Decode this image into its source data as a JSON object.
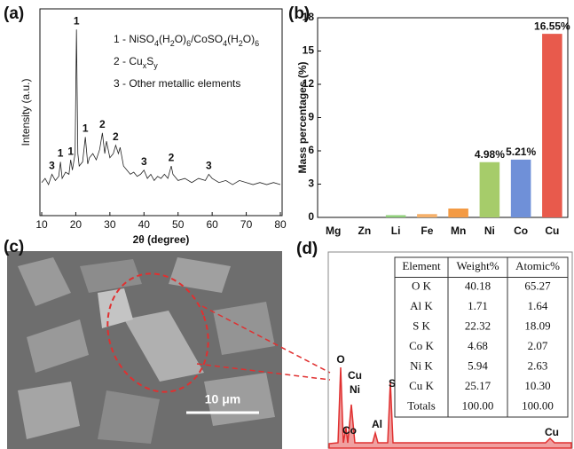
{
  "chart_data": [
    {
      "type": "line",
      "panel_label": "(a)",
      "x_label": "2θ (degree)",
      "y_label": "Intensity (a.u.)",
      "color": "#222222",
      "x": [
        10,
        11,
        12,
        13,
        14,
        15,
        15.5,
        16,
        17,
        18,
        18.5,
        19,
        19.8,
        20.2,
        20.6,
        21,
        22,
        22.8,
        23.5,
        24,
        25,
        26,
        27,
        27.8,
        28.5,
        29,
        30,
        31,
        31.7,
        32.5,
        33,
        34,
        35,
        36,
        37,
        38,
        39,
        40,
        41,
        42,
        43,
        44,
        45,
        46,
        47,
        48,
        48.5,
        49,
        50,
        52,
        54,
        56,
        58,
        59,
        60,
        62,
        64,
        66,
        68,
        70,
        72,
        74,
        76,
        78,
        80
      ],
      "values": [
        16,
        18,
        15,
        20,
        17,
        19,
        26,
        18,
        21,
        20,
        27,
        22,
        30,
        90,
        30,
        24,
        26,
        38,
        25,
        28,
        30,
        27,
        32,
        40,
        30,
        36,
        28,
        30,
        34,
        30,
        33,
        24,
        22,
        20,
        21,
        19,
        20,
        22,
        18,
        20,
        17,
        19,
        18,
        20,
        18,
        24,
        20,
        19,
        17,
        18,
        16,
        18,
        17,
        20,
        18,
        16,
        17,
        15,
        17,
        16,
        15,
        16,
        15,
        16,
        15
      ],
      "xlim": [
        10,
        80
      ],
      "xticks": [
        10,
        20,
        30,
        40,
        50,
        60,
        70,
        80
      ],
      "ylim": [
        0,
        100
      ],
      "annotations": [
        {
          "text": "3",
          "x": 13
        },
        {
          "text": "1",
          "x": 15.5
        },
        {
          "text": "1",
          "x": 18.5
        },
        {
          "text": "1",
          "x": 20.2
        },
        {
          "text": "1",
          "x": 22.8
        },
        {
          "text": "2",
          "x": 27.8
        },
        {
          "text": "2",
          "x": 31.7
        },
        {
          "text": "3",
          "x": 40
        },
        {
          "text": "2",
          "x": 48
        },
        {
          "text": "3",
          "x": 59
        }
      ],
      "legend_lines": [
        [
          "1 - NiSO",
          "4",
          "(H",
          "2",
          "O)",
          "6",
          "/CoSO",
          "4",
          "(H",
          "2",
          "O)",
          "6"
        ],
        [
          "2 - Cu",
          "x",
          "S",
          "y"
        ],
        [
          "3 - Other metallic elements"
        ]
      ]
    },
    {
      "type": "bar",
      "panel_label": "(b)",
      "y_label": "Mass percentages (%)",
      "categories": [
        "Mg",
        "Zn",
        "Li",
        "Fe",
        "Mn",
        "Ni",
        "Co",
        "Cu"
      ],
      "values": [
        0,
        0,
        0.2,
        0.3,
        0.8,
        4.98,
        5.21,
        16.55
      ],
      "value_labels": [
        null,
        null,
        null,
        null,
        null,
        "4.98%",
        "5.21%",
        "16.55%"
      ],
      "colors": [
        "#7bb26a",
        "#7bb26a",
        "#8fcf7a",
        "#f5b06a",
        "#f39a44",
        "#a6cc6a",
        "#6f90d8",
        "#e85a4c"
      ],
      "ylim": [
        0,
        18
      ],
      "yticks": [
        0,
        3,
        6,
        9,
        12,
        15,
        18
      ]
    }
  ],
  "sem_image": {
    "panel_label": "(c)",
    "scale_bar": "10 μm"
  },
  "eds": {
    "panel_label": "(d)",
    "table": {
      "header": [
        "Element",
        "Weight%",
        "Atomic%"
      ],
      "rows": [
        [
          "O K",
          "40.18",
          "65.27"
        ],
        [
          "Al K",
          "1.71",
          "1.64"
        ],
        [
          "S K",
          "22.32",
          "18.09"
        ],
        [
          "Co K",
          "4.68",
          "2.07"
        ],
        [
          "Ni K",
          "5.94",
          "2.63"
        ],
        [
          "Cu K",
          "25.17",
          "10.30"
        ],
        [
          "Totals",
          "100.00",
          "100.00"
        ]
      ]
    },
    "peaks": [
      "O",
      "Cu",
      "Ni",
      "Co",
      "Al",
      "S",
      "Cu"
    ]
  }
}
